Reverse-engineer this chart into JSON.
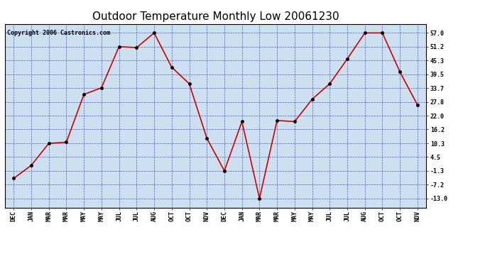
{
  "title": "Outdoor Temperature Monthly Low 20061230",
  "copyright_text": "Copyright 2006 Castronics.com",
  "x_labels": [
    "DEC",
    "JAN",
    "MAR",
    "MAR",
    "MAY",
    "MAY",
    "JUL",
    "JUL",
    "AUG",
    "OCT",
    "OCT",
    "NOV",
    "DEC",
    "JAN",
    "MAR",
    "MAR",
    "MAY",
    "MAY",
    "JUL",
    "JUL",
    "AUG",
    "OCT",
    "OCT",
    "NOV"
  ],
  "y_values": [
    -4.5,
    1.0,
    10.3,
    10.8,
    31.0,
    33.8,
    51.2,
    50.8,
    57.0,
    42.5,
    35.5,
    12.5,
    -1.3,
    19.5,
    -13.0,
    20.0,
    19.5,
    29.0,
    35.5,
    46.0,
    57.0,
    57.0,
    40.5,
    26.5
  ],
  "line_color": "#cc0000",
  "marker_color": "#000000",
  "plot_bg_color": "#cce0f0",
  "fig_bg_color": "#ffffff",
  "grid_color": "#3333cc",
  "border_color": "#000000",
  "y_ticks": [
    -13.0,
    -7.2,
    -1.3,
    4.5,
    10.3,
    16.2,
    22.0,
    27.8,
    33.7,
    39.5,
    45.3,
    51.2,
    57.0
  ],
  "ylim": [
    -16.8,
    60.8
  ],
  "title_fontsize": 11,
  "label_fontsize": 6,
  "copyright_fontsize": 6
}
